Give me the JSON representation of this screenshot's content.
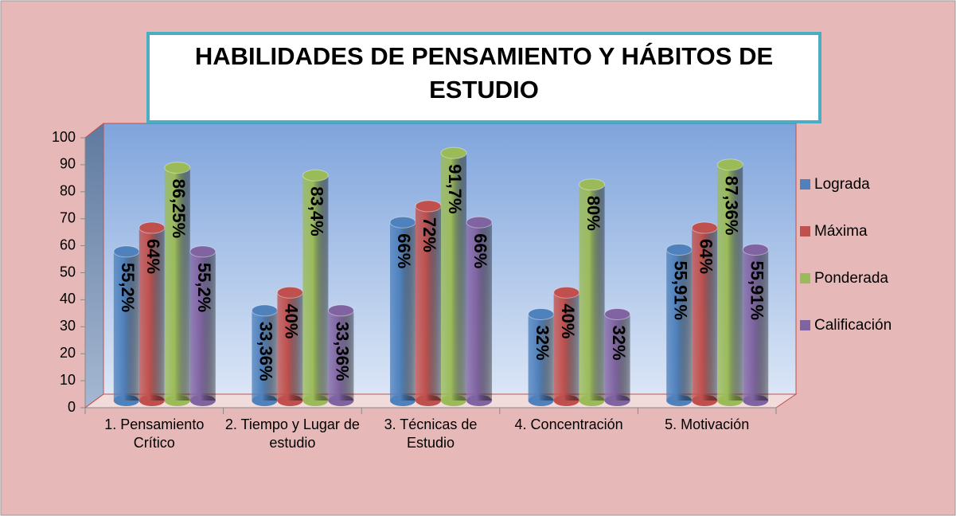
{
  "chart_data": {
    "type": "bar3d",
    "title": "HABILIDADES DE PENSAMIENTO Y HÁBITOS DE ESTUDIO",
    "categories": [
      "1. Pensamiento Crítico",
      "2. Tiempo y Lugar de estudio",
      "3. Técnicas de Estudio",
      "4. Concentración",
      "5. Motivación"
    ],
    "series": [
      {
        "name": "Lograda",
        "color": "#4f81bd",
        "values": [
          55.2,
          33.36,
          66,
          32,
          55.91
        ],
        "value_labels": [
          "55,2%",
          "33,36%",
          "66%",
          "32%",
          "55,91%"
        ]
      },
      {
        "name": "Máxima",
        "color": "#c0504d",
        "values": [
          64,
          40,
          72,
          40,
          64
        ],
        "value_labels": [
          "64%",
          "40%",
          "72%",
          "40%",
          "64%"
        ]
      },
      {
        "name": "Ponderada",
        "color": "#9bbb59",
        "values": [
          86.25,
          83.4,
          91.7,
          80,
          87.36
        ],
        "value_labels": [
          "86,25%",
          "83,4%",
          "91,7%",
          "80%",
          "87,36%"
        ]
      },
      {
        "name": "Calificación",
        "color": "#8064a2",
        "values": [
          55.2,
          33.36,
          66,
          32,
          55.91
        ],
        "value_labels": [
          "55,2%",
          "33,36%",
          "66%",
          "32%",
          "55,91%"
        ]
      }
    ],
    "ylim": [
      0,
      100
    ],
    "yticks": [
      0,
      10,
      20,
      30,
      40,
      50,
      60,
      70,
      80,
      90,
      100
    ],
    "grid": false,
    "legend": "right"
  }
}
